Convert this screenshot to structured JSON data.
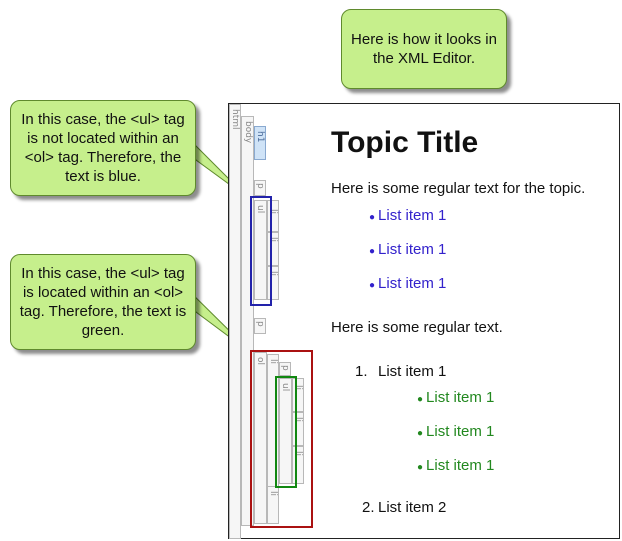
{
  "callouts": {
    "top": "Here is how it looks in the XML Editor.",
    "blue": "In this case, the <ul> tag is not located within an <ol> tag. Therefore, the text is blue.",
    "green": "In this case, the <ul> tag is located within an <ol> tag. Therefore, the text is green."
  },
  "tags": {
    "html": "html",
    "body": "body",
    "h1": "h1",
    "p": "p",
    "ul": "ul",
    "li": "li",
    "ol": "ol"
  },
  "document": {
    "title": "Topic Title",
    "para1": "Here is some regular text for the topic.",
    "list_blue": [
      "List item 1",
      "List item 1",
      "List item 1"
    ],
    "para2": "Here is some regular text.",
    "ol_item1_num": "1.",
    "ol_item1": "List item 1",
    "list_green": [
      "List item 1",
      "List item 1",
      "List item 1"
    ],
    "ol_item2_num": "2.",
    "ol_item2": "List item 2"
  },
  "colors": {
    "blue_text": "#3322cc",
    "green_text": "#22881f",
    "blue_highlight": "#2222aa",
    "green_highlight": "#118811",
    "red_highlight": "#aa1111",
    "callout_fill": "#c6ef8c"
  }
}
